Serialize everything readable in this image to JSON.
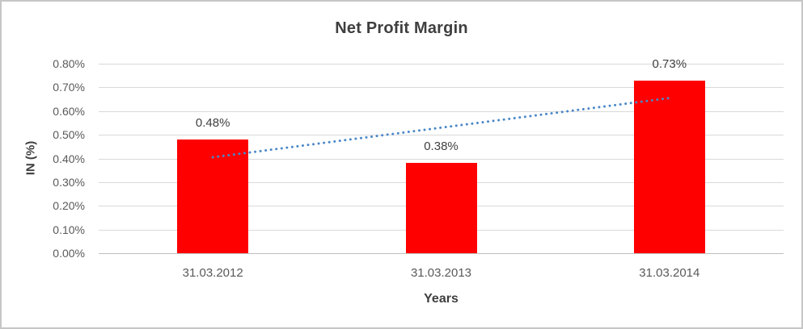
{
  "chart_data": {
    "type": "bar",
    "title": "Net Profit Margin",
    "xlabel": "Years",
    "ylabel": "IN (%)",
    "categories": [
      "31.03.2012",
      "31.03.2013",
      "31.03.2014"
    ],
    "values": [
      0.48,
      0.38,
      0.73
    ],
    "data_labels": [
      "0.48%",
      "0.38%",
      "0.73%"
    ],
    "ylim": [
      0.0,
      0.8
    ],
    "ytick_step": 0.1,
    "ytick_labels": [
      "0.00%",
      "0.10%",
      "0.20%",
      "0.30%",
      "0.40%",
      "0.50%",
      "0.60%",
      "0.70%",
      "0.80%"
    ],
    "grid": true,
    "legend": "none",
    "bar_color": "#ff0000",
    "gridline_color": "#d9d9d9",
    "axis_line_color": "#bfbfbf",
    "trendline": {
      "type": "linear",
      "style": "dotted",
      "color": "#4a87c8",
      "start_value": 0.405,
      "end_value": 0.655
    }
  }
}
